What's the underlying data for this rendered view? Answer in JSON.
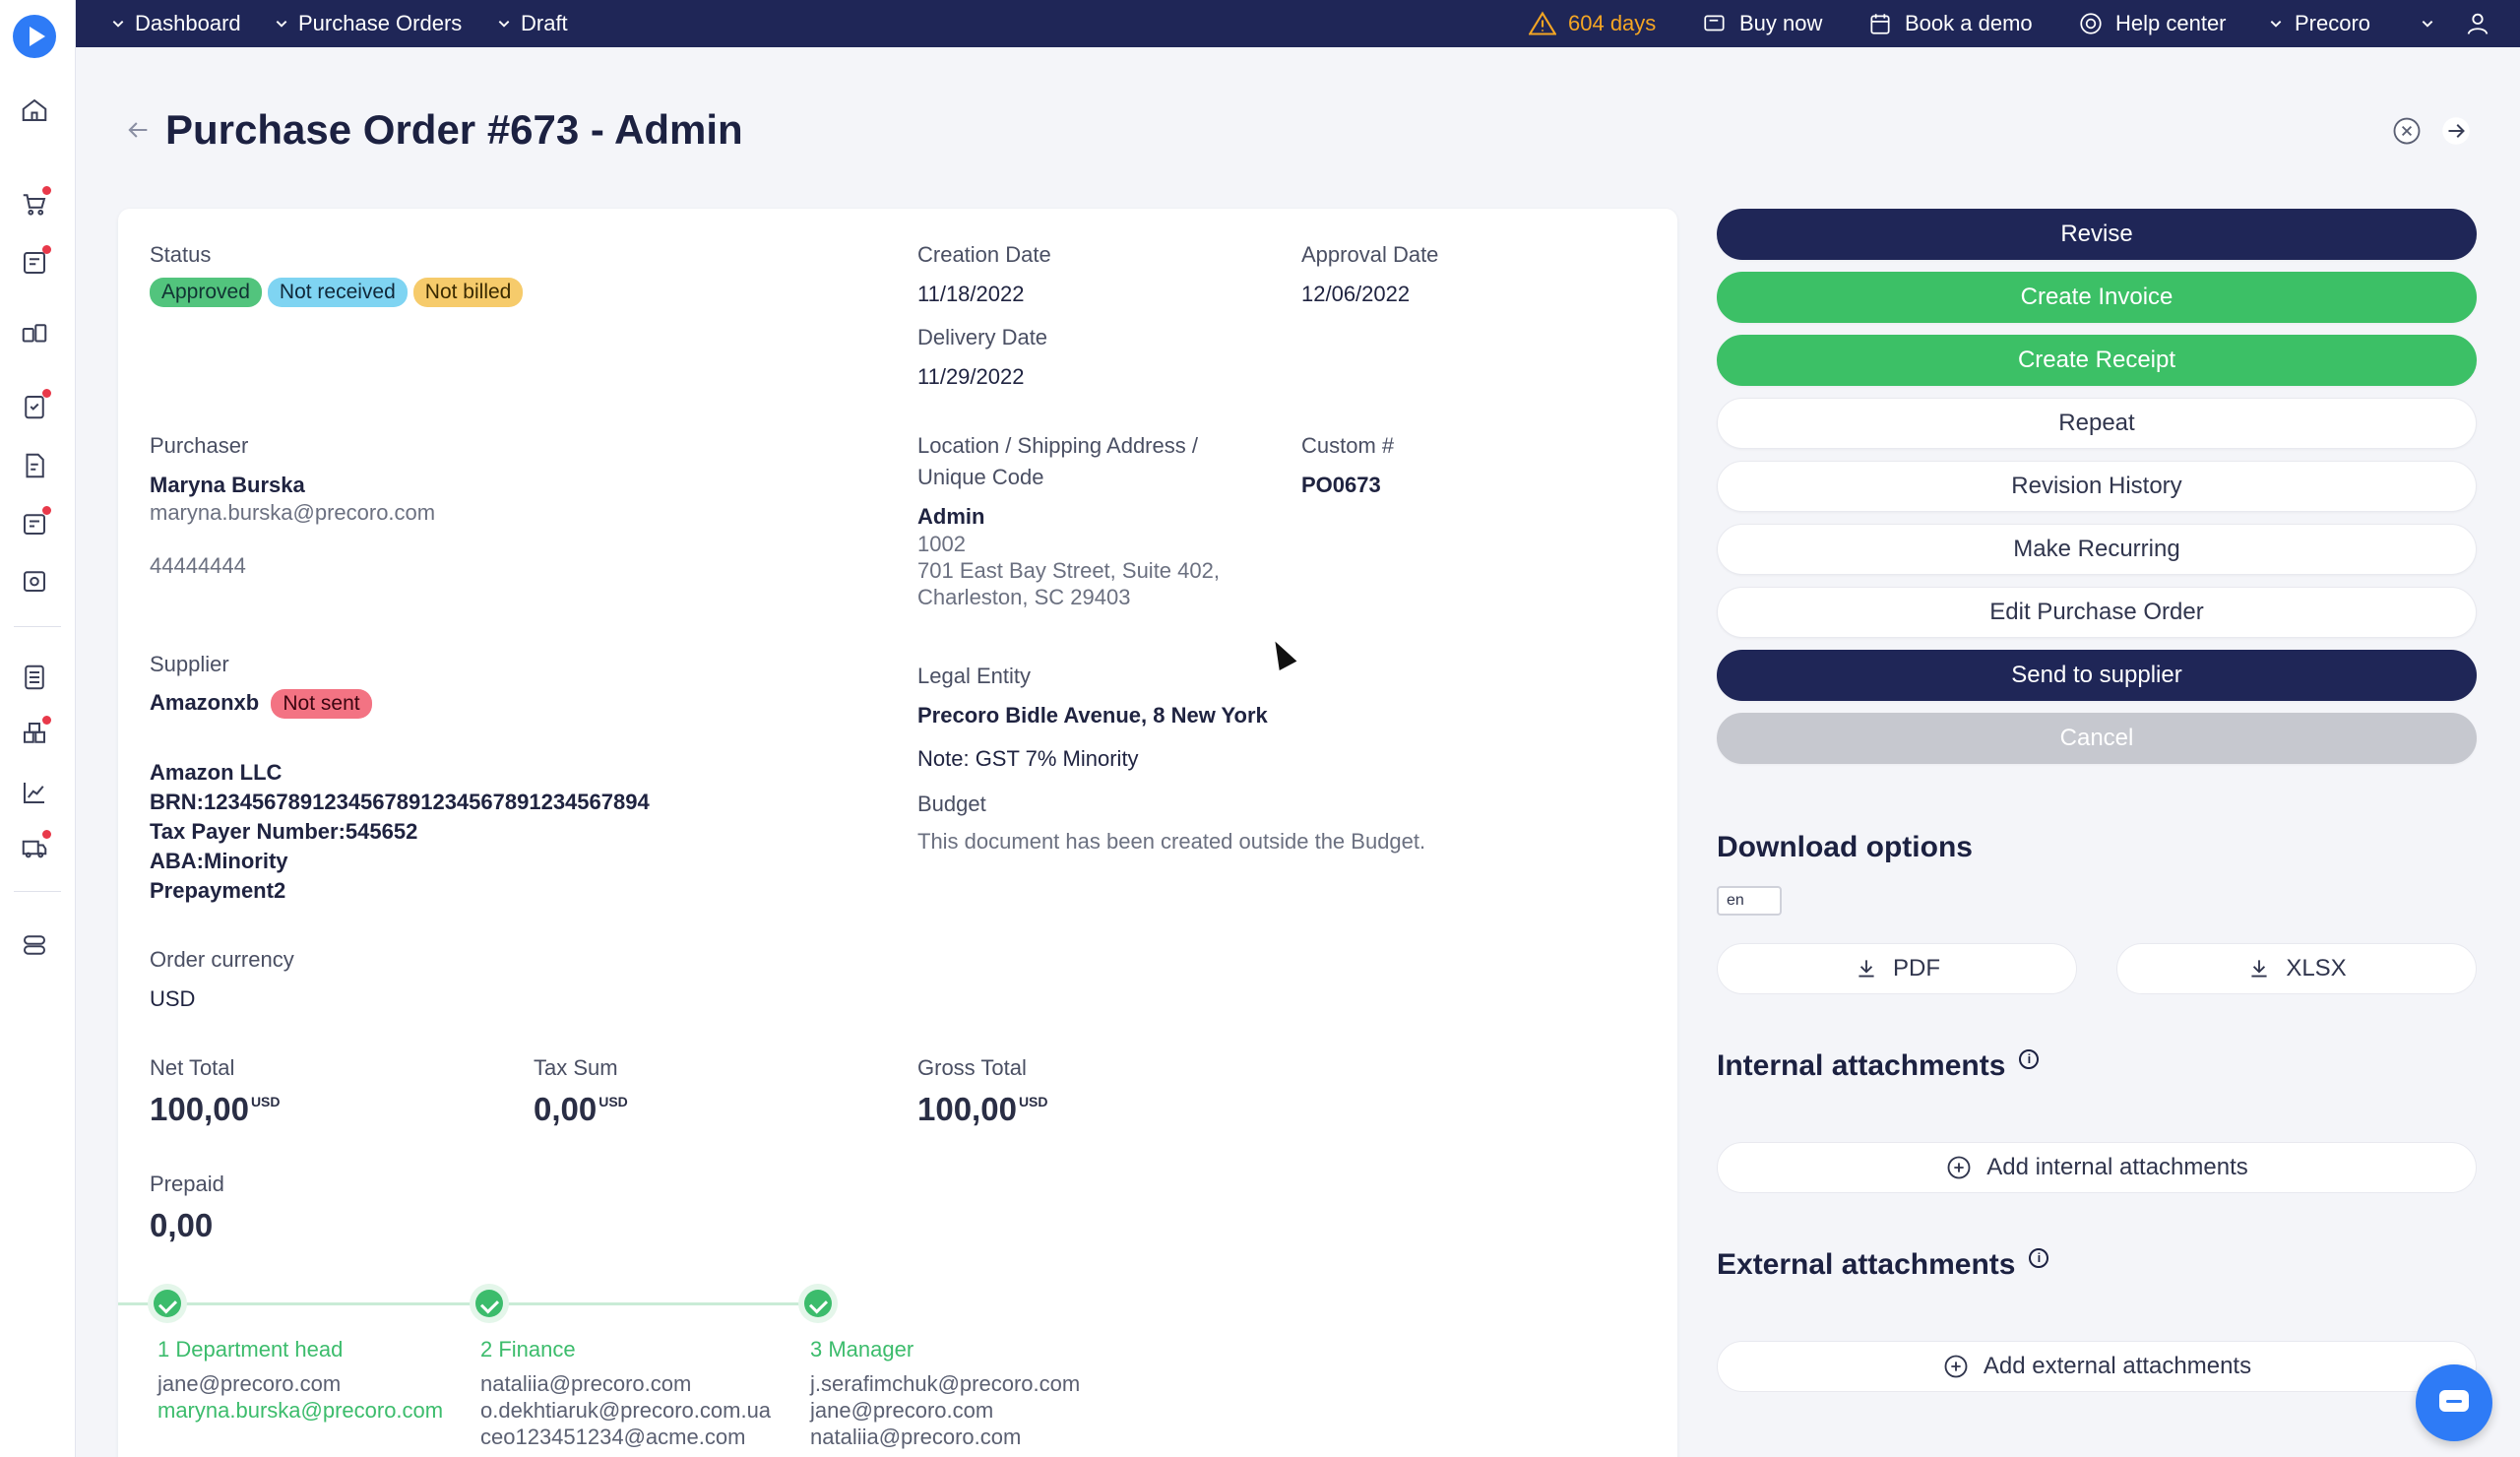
{
  "topbar": {
    "crumbs": [
      "Dashboard",
      "Purchase Orders",
      "Draft"
    ],
    "trial_days": "604 days",
    "buy_now": "Buy now",
    "book_demo": "Book a demo",
    "help_center": "Help center",
    "company": "Precoro"
  },
  "page": {
    "title": "Purchase Order #673 - Admin"
  },
  "details": {
    "status_label": "Status",
    "status_badges": [
      "Approved",
      "Not received",
      "Not billed"
    ],
    "creation_date_label": "Creation Date",
    "creation_date": "11/18/2022",
    "approval_date_label": "Approval Date",
    "approval_date": "12/06/2022",
    "delivery_date_label": "Delivery Date",
    "delivery_date": "11/29/2022",
    "purchaser_label": "Purchaser",
    "purchaser_name": "Maryna Burska",
    "purchaser_email": "maryna.burska@precoro.com",
    "purchaser_phone": "44444444",
    "location_label_1": "Location / Shipping Address /",
    "location_label_2": "Unique Code",
    "location_name": "Admin",
    "location_code": "1002",
    "location_addr_1": "701 East Bay Street, Suite 402,",
    "location_addr_2": "Charleston, SC 29403",
    "custom_label": "Custom #",
    "custom_value": "PO0673",
    "supplier_label": "Supplier",
    "supplier_name": "Amazonxb",
    "supplier_badge": "Not sent",
    "supplier_lines": [
      "Amazon LLC",
      "BRN:1234567891234567891234567891234567894",
      "Tax Payer Number:545652",
      "ABA:Minority",
      "Prepayment2"
    ],
    "legal_label": "Legal Entity",
    "legal_value": "Precoro Bidle Avenue, 8 New York",
    "legal_note": "Note: GST 7% Minority",
    "budget_label": "Budget",
    "budget_value": "This document has been created outside the Budget.",
    "currency_label": "Order currency",
    "currency_value": "USD",
    "net_label": "Net Total",
    "net_value": "100,00",
    "tax_label": "Tax Sum",
    "tax_value": "0,00",
    "gross_label": "Gross Total",
    "gross_value": "100,00",
    "currency_sup": "USD",
    "prepaid_label": "Prepaid",
    "prepaid_value": "0,00"
  },
  "steps": [
    {
      "name": "1 Department head",
      "emails": [
        "jane@precoro.com"
      ],
      "highlight": "maryna.burska@precoro.com"
    },
    {
      "name": "2 Finance",
      "emails": [
        "nataliia@precoro.com",
        "o.dekhtiaruk@precoro.com.ua",
        "ceo123451234@acme.com"
      ]
    },
    {
      "name": "3 Manager",
      "emails": [
        "j.serafimchuk@precoro.com",
        "jane@precoro.com",
        "nataliia@precoro.com"
      ]
    }
  ],
  "actions": {
    "revise": "Revise",
    "create_invoice": "Create Invoice",
    "create_receipt": "Create Receipt",
    "repeat": "Repeat",
    "revision_history": "Revision History",
    "make_recurring": "Make Recurring",
    "edit": "Edit Purchase Order",
    "send": "Send to supplier",
    "cancel": "Cancel"
  },
  "download": {
    "title": "Download options",
    "lang": "en",
    "pdf": "PDF",
    "xlsx": "XLSX"
  },
  "attachments": {
    "internal_title": "Internal attachments",
    "internal_add": "Add internal attachments",
    "external_title": "External attachments",
    "external_add": "Add external attachments"
  },
  "colors": {
    "navy": "#1f2657",
    "green": "#3cc066",
    "accent": "#2e7bf6",
    "warning": "#f5a623"
  }
}
